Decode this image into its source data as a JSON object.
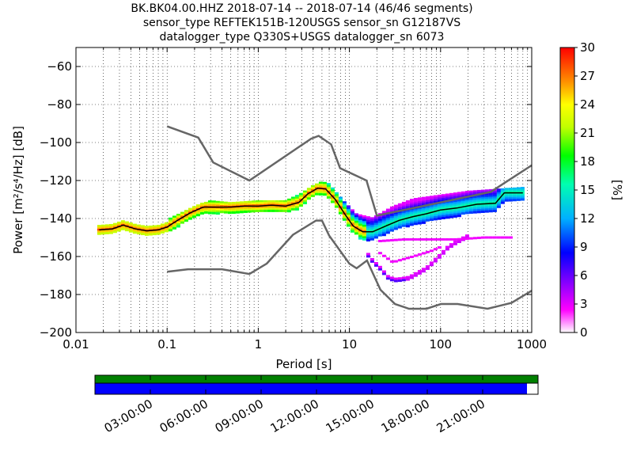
{
  "chart_data": {
    "type": "heatmap",
    "title_lines": [
      "BK.BK04.00.HHZ   2018-07-14 -- 2018-07-14  (46/46 segments)",
      "sensor_type REFTEK151B-120USGS sensor_sn G12187VS",
      "datalogger_type Q330S+USGS datalogger_sn 6073"
    ],
    "xlabel": "Period [s]",
    "ylabel": "Power [m²/s⁴/Hz] [dB]",
    "x_scale": "log",
    "xlim": [
      0.01,
      1000
    ],
    "ylim": [
      -200,
      -50
    ],
    "x_tick_labels": [
      "0.01",
      "0.1",
      "1",
      "10",
      "100",
      "1000"
    ],
    "y_tick_labels": [
      "−60",
      "−80",
      "−100",
      "−120",
      "−140",
      "−160",
      "−180",
      "−200"
    ],
    "y_tick_values": [
      -60,
      -80,
      -100,
      -120,
      -140,
      -160,
      -180,
      -200
    ],
    "grid": true,
    "colorbar": {
      "label": "[%]",
      "ticks": [
        "0",
        "3",
        "6",
        "9",
        "12",
        "15",
        "18",
        "21",
        "24",
        "27",
        "30"
      ],
      "range": [
        0,
        30
      ]
    },
    "noise_models": {
      "high": {
        "period": [
          0.1,
          0.22,
          0.32,
          0.8,
          3.8,
          4.6,
          6.3,
          7.9,
          15.4,
          20,
          354.8,
          1000
        ],
        "db": [
          -91.5,
          -97.4,
          -110.5,
          -120,
          -98,
          -96.5,
          -101,
          -113.5,
          -120,
          -138.5,
          -126,
          -112
        ]
      },
      "low": {
        "period": [
          0.1,
          0.17,
          0.4,
          0.8,
          1.24,
          2.4,
          4.3,
          5,
          6,
          10,
          12,
          15.6,
          21.9,
          31.6,
          45,
          70,
          101,
          154,
          328,
          600,
          1000
        ],
        "db": [
          -168,
          -166.7,
          -166.7,
          -169.2,
          -163.7,
          -148.6,
          -141.1,
          -141.1,
          -149,
          -163.8,
          -166.2,
          -162.1,
          -177.5,
          -185,
          -187.5,
          -187.5,
          -185,
          -185,
          -187.5,
          -184.4,
          -178
        ]
      }
    },
    "mode_curve": {
      "period": [
        0.018,
        0.025,
        0.033,
        0.045,
        0.06,
        0.08,
        0.1,
        0.13,
        0.18,
        0.25,
        0.35,
        0.5,
        0.7,
        1,
        1.4,
        2,
        2.8,
        3.5,
        4.5,
        5.5,
        7,
        9,
        11,
        14,
        18,
        25,
        35,
        50,
        70,
        100,
        150,
        250,
        400,
        500,
        800
      ],
      "db": [
        -146,
        -145.5,
        -143.5,
        -145.5,
        -146.5,
        -146,
        -144.5,
        -141,
        -137,
        -134,
        -134,
        -134,
        -133.5,
        -133.5,
        -133,
        -133.5,
        -131.5,
        -127,
        -124,
        -124.5,
        -130,
        -138,
        -144,
        -147,
        -147,
        -144,
        -141,
        -139,
        -137.5,
        -135.5,
        -134.5,
        -132.5,
        -132,
        -126.5,
        -126.5
      ]
    },
    "upper_envelope": {
      "period": [
        0.1,
        0.2,
        0.3,
        0.5,
        1,
        2,
        3,
        4,
        5,
        6,
        7,
        9,
        12,
        18,
        30,
        50,
        100,
        200,
        800
      ],
      "db": [
        -141,
        -134,
        -131,
        -132,
        -131,
        -131,
        -127,
        -123,
        -121,
        -122,
        -126,
        -132,
        -138,
        -140,
        -134,
        -130,
        -128,
        -126,
        -124
      ]
    },
    "lower_branch": {
      "period": [
        15,
        18,
        22,
        27,
        33,
        45,
        70,
        100,
        120,
        150,
        200
      ],
      "db": [
        -158,
        -163,
        -167,
        -172,
        -173,
        -172,
        -167,
        -160,
        -156,
        -153,
        -150
      ]
    },
    "mid_branch": {
      "period": [
        20,
        30,
        50,
        80,
        100
      ],
      "db": [
        -157,
        -163,
        -160,
        -157,
        -155
      ]
    },
    "thin_band_points": {
      "period": [
        20,
        40,
        80,
        150,
        300,
        600
      ],
      "db": [
        -152,
        -151,
        -151,
        -151,
        -150,
        -150
      ]
    },
    "series": [
      {
        "name": "",
        "values": []
      }
    ]
  },
  "timeline": {
    "labels": [
      "03:00:00",
      "06:00:00",
      "09:00:00",
      "12:00:00",
      "15:00:00",
      "18:00:00",
      "21:00:00"
    ],
    "top_bar_color": "#008000",
    "bottom_bar_color": "#0000ff",
    "coverage": 0.975
  }
}
